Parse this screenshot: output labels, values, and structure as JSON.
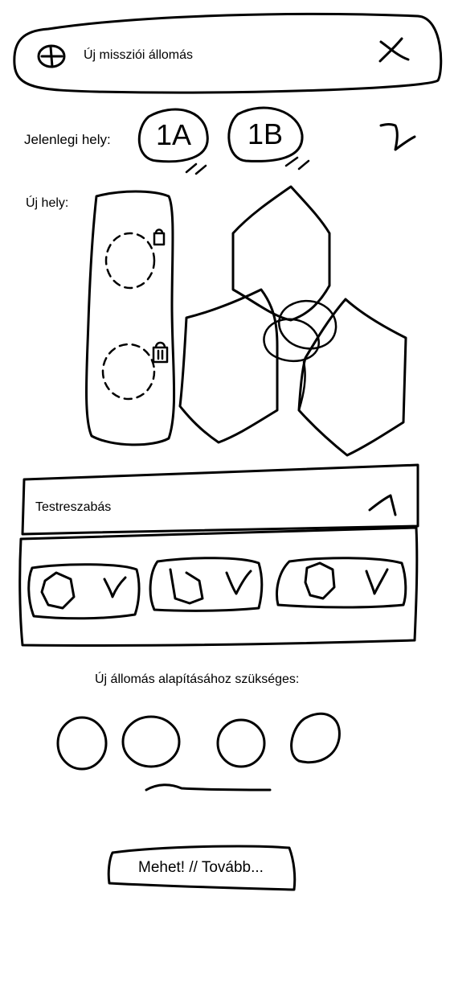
{
  "header": {
    "title": "Új missziói állomás",
    "add_icon": "plus-circle-icon",
    "close_icon": "close-icon"
  },
  "current_location": {
    "label": "Jelenlegi hely:",
    "options": [
      {
        "label": "1A"
      },
      {
        "label": "1B"
      }
    ],
    "swap_icon": "swap-arrow-icon"
  },
  "new_location": {
    "label": "Új hely:",
    "slot_icon": "lock-icon"
  },
  "customization": {
    "title": "Testreszabás",
    "toggle_icon": "chevron-up-icon",
    "chevrons": [
      "V",
      "V",
      "V"
    ]
  },
  "requirements": {
    "title": "Új állomás alapításához szükséges:"
  },
  "footer": {
    "button_label": "Mehet! // Tovább..."
  }
}
